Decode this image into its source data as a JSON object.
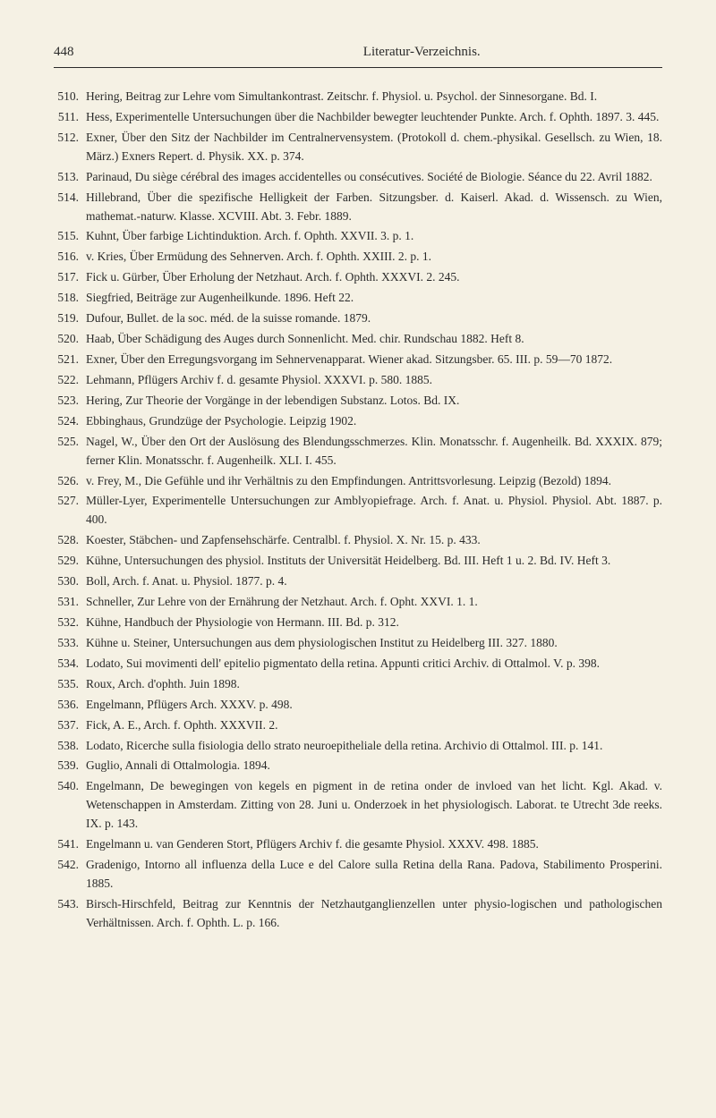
{
  "page_number": "448",
  "page_title": "Literatur-Verzeichnis.",
  "background_color": "#f5f1e4",
  "text_color": "#2a2a2a",
  "font_family": "Georgia, Times New Roman, serif",
  "body_fontsize": 13.5,
  "header_fontsize": 15,
  "line_height": 1.55,
  "entries": [
    {
      "num": "510.",
      "text": "Hering, Beitrag zur Lehre vom Simultankontrast. Zeitschr. f. Physiol. u. Psychol. der Sinnesorgane. Bd. I."
    },
    {
      "num": "511.",
      "text": "Hess, Experimentelle Untersuchungen über die Nachbilder bewegter leuchtender Punkte. Arch. f. Ophth. 1897. 3. 445."
    },
    {
      "num": "512.",
      "text": "Exner, Über den Sitz der Nachbilder im Centralnervensystem. (Protokoll d. chem.-physikal. Gesellsch. zu Wien, 18. März.) Exners Repert. d. Physik. XX. p. 374."
    },
    {
      "num": "513.",
      "text": "Parinaud, Du siège cérébral des images accidentelles ou consécutives. Société de Biologie. Séance du 22. Avril 1882."
    },
    {
      "num": "514.",
      "text": "Hillebrand, Über die spezifische Helligkeit der Farben. Sitzungsber. d. Kaiserl. Akad. d. Wissensch. zu Wien, mathemat.-naturw. Klasse. XCVIII. Abt. 3. Febr. 1889."
    },
    {
      "num": "515.",
      "text": "Kuhnt, Über farbige Lichtinduktion. Arch. f. Ophth. XXVII. 3. p. 1."
    },
    {
      "num": "516.",
      "text": "v. Kries, Über Ermüdung des Sehnerven. Arch. f. Ophth. XXIII. 2. p. 1."
    },
    {
      "num": "517.",
      "text": "Fick u. Gürber, Über Erholung der Netzhaut. Arch. f. Ophth. XXXVI. 2. 245."
    },
    {
      "num": "518.",
      "text": "Siegfried, Beiträge zur Augenheilkunde. 1896. Heft 22."
    },
    {
      "num": "519.",
      "text": "Dufour, Bullet. de la soc. méd. de la suisse romande. 1879."
    },
    {
      "num": "520.",
      "text": "Haab, Über Schädigung des Auges durch Sonnenlicht. Med. chir. Rundschau 1882. Heft 8."
    },
    {
      "num": "521.",
      "text": "Exner, Über den Erregungsvorgang im Sehnervenapparat. Wiener akad. Sitzungsber. 65. III. p. 59—70 1872."
    },
    {
      "num": "522.",
      "text": "Lehmann, Pflügers Archiv f. d. gesamte Physiol. XXXVI. p. 580. 1885."
    },
    {
      "num": "523.",
      "text": "Hering, Zur Theorie der Vorgänge in der lebendigen Substanz. Lotos. Bd. IX."
    },
    {
      "num": "524.",
      "text": "Ebbinghaus, Grundzüge der Psychologie. Leipzig 1902."
    },
    {
      "num": "525.",
      "text": "Nagel, W., Über den Ort der Auslösung des Blendungsschmerzes. Klin. Monatsschr. f. Augenheilk. Bd. XXXIX. 879; ferner Klin. Monatsschr. f. Augenheilk. XLI. I. 455."
    },
    {
      "num": "526.",
      "text": "v. Frey, M., Die Gefühle und ihr Verhältnis zu den Empfindungen. Antrittsvorlesung. Leipzig (Bezold) 1894."
    },
    {
      "num": "527.",
      "text": "Müller-Lyer, Experimentelle Untersuchungen zur Amblyopiefrage. Arch. f. Anat. u. Physiol. Physiol. Abt. 1887. p. 400."
    },
    {
      "num": "528.",
      "text": "Koester, Stäbchen- und Zapfensehschärfe. Centralbl. f. Physiol. X. Nr. 15. p. 433."
    },
    {
      "num": "529.",
      "text": "Kühne, Untersuchungen des physiol. Instituts der Universität Heidelberg. Bd. III. Heft 1 u. 2. Bd. IV. Heft 3."
    },
    {
      "num": "530.",
      "text": "Boll, Arch. f. Anat. u. Physiol. 1877. p. 4."
    },
    {
      "num": "531.",
      "text": "Schneller, Zur Lehre von der Ernährung der Netzhaut. Arch. f. Opht. XXVI. 1. 1."
    },
    {
      "num": "532.",
      "text": "Kühne, Handbuch der Physiologie von Hermann. III. Bd. p. 312."
    },
    {
      "num": "533.",
      "text": "Kühne u. Steiner, Untersuchungen aus dem physiologischen Institut zu Heidelberg III. 327. 1880."
    },
    {
      "num": "534.",
      "text": "Lodato, Sui movimenti dell' epitelio pigmentato della retina. Appunti critici Archiv. di Ottalmol. V. p. 398."
    },
    {
      "num": "535.",
      "text": "Roux, Arch. d'ophth. Juin 1898."
    },
    {
      "num": "536.",
      "text": "Engelmann, Pflügers Arch. XXXV. p. 498."
    },
    {
      "num": "537.",
      "text": "Fick, A. E., Arch. f. Ophth. XXXVII. 2."
    },
    {
      "num": "538.",
      "text": "Lodato, Ricerche sulla fisiologia dello strato neuroepitheliale della retina. Archivio di Ottalmol. III. p. 141."
    },
    {
      "num": "539.",
      "text": "Guglio, Annali di Ottalmologia. 1894."
    },
    {
      "num": "540.",
      "text": "Engelmann, De bewegingen von kegels en pigment in de retina onder de invloed van het licht. Kgl. Akad. v. Wetenschappen in Amsterdam. Zitting von 28. Juni u. Onderzoek in het physiologisch. Laborat. te Utrecht 3de reeks. IX. p. 143."
    },
    {
      "num": "541.",
      "text": "Engelmann u. van Genderen Stort, Pflügers Archiv f. die gesamte Physiol. XXXV. 498. 1885."
    },
    {
      "num": "542.",
      "text": "Gradenigo, Intorno all influenza della Luce e del Calore sulla Retina della Rana. Padova, Stabilimento Prosperini. 1885."
    },
    {
      "num": "543.",
      "text": "Birsch-Hirschfeld, Beitrag zur Kenntnis der Netzhautganglienzellen unter physio-logischen und pathologischen Verhältnissen. Arch. f. Ophth. L. p. 166."
    }
  ]
}
